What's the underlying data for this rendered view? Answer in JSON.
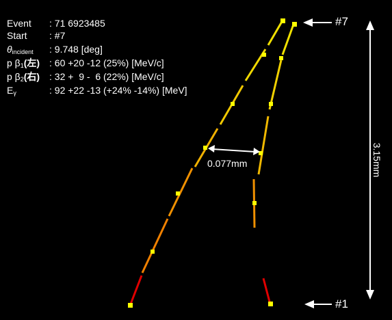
{
  "info": {
    "rows": [
      {
        "label": "Event",
        "value": ": 71 6923485"
      },
      {
        "label": "Start",
        "value": ": #7"
      },
      {
        "label": "θ",
        "subscript": "incident",
        "value": ": 9.748 [deg]"
      },
      {
        "label": "p β",
        "subscript": "1",
        "suffix": "(左)",
        "value": ": 60 +20 -12 (25%) [MeV/c]"
      },
      {
        "label": "p β",
        "subscript": "2",
        "suffix": "(右)",
        "value": ": 32 +  9 -  6 (22%) [MeV/c]"
      },
      {
        "label": "E",
        "subscript": "γ",
        "value": ": 92 +22 -13 (+24% -14%) [MeV]"
      }
    ]
  },
  "annotations": {
    "separation": "0.077mm",
    "length": "3.15mm",
    "top": "#7",
    "bottom": "#1"
  }
}
